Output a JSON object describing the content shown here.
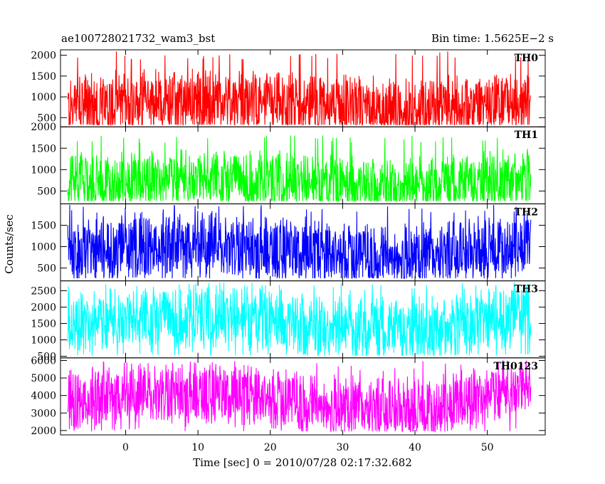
{
  "header": {
    "left_title": "ae100728021732_wam3_bst",
    "right_title": "Bin time: 1.5625E−2 s"
  },
  "chart_data": {
    "type": "line",
    "xlabel": "Time [sec] 0 = 2010/07/28 02:17:32.682",
    "ylabel": "Counts/sec",
    "xlim": [
      -9,
      58
    ],
    "x_range_data": [
      -8,
      56
    ],
    "xticks": [
      0,
      10,
      20,
      30,
      40,
      50
    ],
    "xtick_labels": [
      "0",
      "10",
      "20",
      "30",
      "40",
      "50"
    ],
    "panels": [
      {
        "label": "TH0",
        "color": "#ff0000",
        "ylim": [
          280,
          2130
        ],
        "yticks": [
          500,
          1000,
          1500,
          2000
        ],
        "ytick_labels": [
          "500",
          "1000",
          "1500",
          "2000"
        ],
        "approx_min": 330,
        "approx_mean": 780,
        "approx_max": 2100
      },
      {
        "label": "TH1",
        "color": "#00ff00",
        "ylim": [
          200,
          2000
        ],
        "yticks": [
          500,
          1000,
          1500,
          2000
        ],
        "ytick_labels": [
          "500",
          "1000",
          "1500",
          "2000"
        ],
        "approx_min": 270,
        "approx_mean": 700,
        "approx_max": 1800
      },
      {
        "label": "TH2",
        "color": "#0000ff",
        "ylim": [
          200,
          2000
        ],
        "yticks": [
          500,
          1000,
          1500
        ],
        "ytick_labels": [
          "500",
          "1000",
          "1500"
        ],
        "approx_min": 260,
        "approx_mean": 900,
        "approx_max": 1990
      },
      {
        "label": "TH3",
        "color": "#00ffff",
        "ylim": [
          450,
          2800
        ],
        "yticks": [
          500,
          1000,
          1500,
          2000,
          2500
        ],
        "ytick_labels": [
          "500",
          "1000",
          "1500",
          "2000",
          "2500"
        ],
        "approx_min": 520,
        "approx_mean": 1500,
        "approx_max": 2750
      },
      {
        "label": "TH0123",
        "color": "#ff00ff",
        "ylim": [
          1750,
          6150
        ],
        "yticks": [
          2000,
          3000,
          4000,
          5000,
          6000
        ],
        "ytick_labels": [
          "2000",
          "3000",
          "4000",
          "5000",
          "6000"
        ],
        "approx_min": 1950,
        "approx_mean": 3700,
        "approx_max": 6000
      }
    ]
  }
}
